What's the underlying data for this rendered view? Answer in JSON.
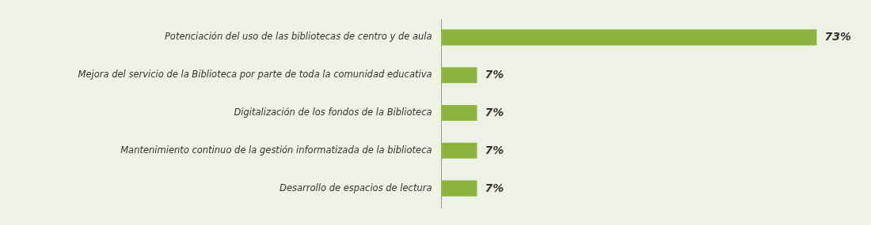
{
  "chart_data": {
    "type": "bar",
    "orientation": "horizontal",
    "categories": [
      "Potenciación del uso de las bibliotecas de centro y de aula",
      "Mejora del servicio de la Biblioteca por parte de toda la comunidad educativa",
      "Digitalización de los fondos de la Biblioteca",
      "Mantenimiento continuo de la gestión informatizada de la biblioteca",
      "Desarrollo de espacios de lectura"
    ],
    "values": [
      73,
      7,
      7,
      7,
      7
    ],
    "value_labels": [
      "73%",
      "7%",
      "7%",
      "7%",
      "7%"
    ],
    "color": "#8db43e"
  }
}
